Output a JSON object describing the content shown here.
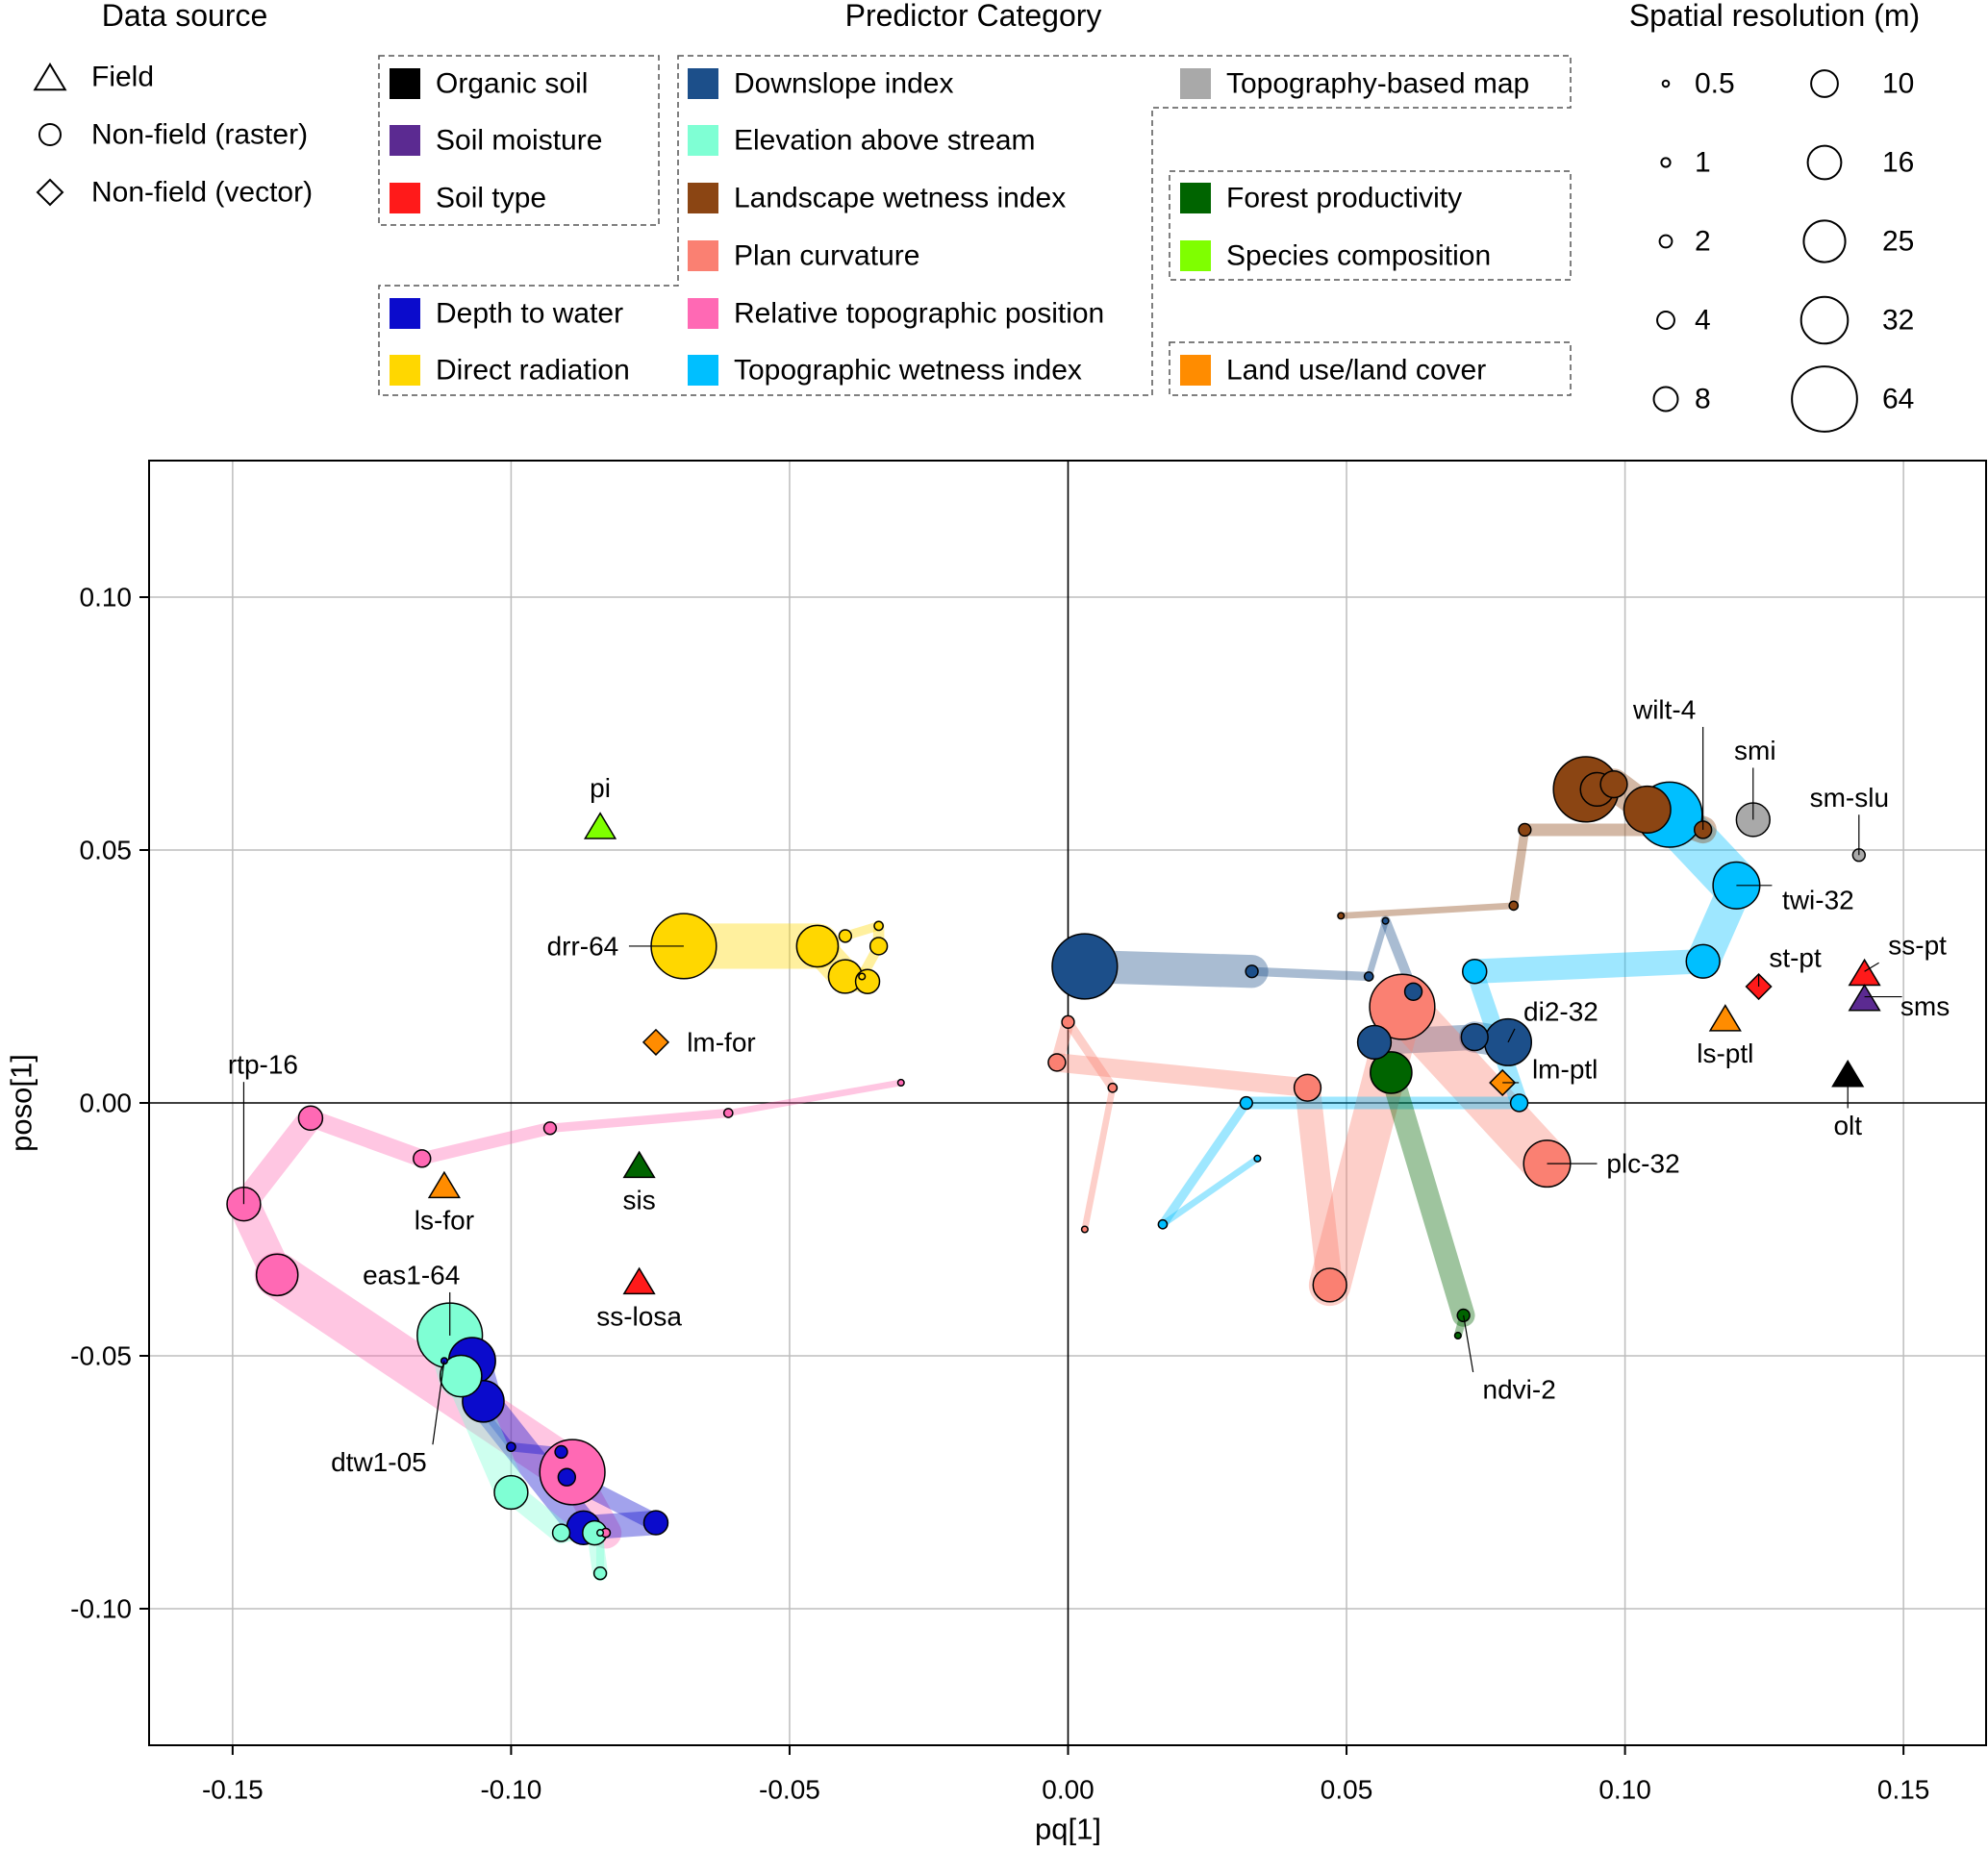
{
  "chart_data": {
    "type": "scatter",
    "title": "",
    "xlabel": "pq[1]",
    "ylabel": "poso[1]",
    "xlim": [
      -0.165,
      0.165
    ],
    "ylim": [
      -0.127,
      0.127
    ],
    "xticks": [
      "-0.15",
      "-0.10",
      "-0.05",
      "0.00",
      "0.05",
      "0.10",
      "0.15"
    ],
    "xtick_values": [
      -0.15,
      -0.1,
      -0.05,
      0.0,
      0.05,
      0.1,
      0.15
    ],
    "yticks": [
      "-0.10",
      "-0.05",
      "0.00",
      "0.05",
      "0.10"
    ],
    "ytick_values": [
      -0.1,
      -0.05,
      0.0,
      0.05,
      0.1
    ],
    "grid": true,
    "zero_lines": true,
    "legend_data_source": {
      "title": "Data source",
      "items": [
        {
          "label": "Field",
          "shape": "triangle"
        },
        {
          "label": "Non-field (raster)",
          "shape": "circle"
        },
        {
          "label": "Non-field (vector)",
          "shape": "diamond"
        }
      ]
    },
    "legend_category": {
      "title": "Predictor Category",
      "items": [
        {
          "label": "Organic soil",
          "color": "#000000"
        },
        {
          "label": "Soil moisture",
          "color": "#5b2a91"
        },
        {
          "label": "Soil type",
          "color": "#ff1a1a"
        },
        {
          "label": "Depth to water",
          "color": "#0b0bcc"
        },
        {
          "label": "Direct radiation",
          "color": "#ffd700"
        },
        {
          "label": "Downslope index",
          "color": "#1c4f8a"
        },
        {
          "label": "Elevation above stream",
          "color": "#7fffd4"
        },
        {
          "label": "Landscape wetness index",
          "color": "#8b4513"
        },
        {
          "label": "Plan curvature",
          "color": "#fa8072"
        },
        {
          "label": "Relative topographic position",
          "color": "#ff69b4"
        },
        {
          "label": "Topographic wetness index",
          "color": "#00bfff"
        },
        {
          "label": "Topography-based map",
          "color": "#a9a9a9"
        },
        {
          "label": "Forest productivity",
          "color": "#006400"
        },
        {
          "label": "Species composition",
          "color": "#7fff00"
        },
        {
          "label": "Land use/land cover",
          "color": "#ff8c00"
        }
      ]
    },
    "legend_resolution": {
      "title": "Spatial resolution (m)",
      "items": [
        "0.5",
        "1",
        "2",
        "4",
        "8",
        "10",
        "16",
        "25",
        "32",
        "64"
      ],
      "values": [
        0.5,
        1,
        2,
        4,
        8,
        10,
        16,
        25,
        32,
        64
      ]
    },
    "series": [
      {
        "category": "Relative topographic position",
        "color": "#ff69b4",
        "points": [
          {
            "x": -0.03,
            "y": 0.004,
            "res": 0.5
          },
          {
            "x": -0.061,
            "y": -0.002,
            "res": 1
          },
          {
            "x": -0.093,
            "y": -0.005,
            "res": 2
          },
          {
            "x": -0.116,
            "y": -0.011,
            "res": 4
          },
          {
            "x": -0.136,
            "y": -0.003,
            "res": 8
          },
          {
            "x": -0.148,
            "y": -0.02,
            "res": 16,
            "label": "rtp-16"
          },
          {
            "x": -0.142,
            "y": -0.034,
            "res": 25
          },
          {
            "x": -0.089,
            "y": -0.073,
            "res": 64
          },
          {
            "x": -0.083,
            "y": -0.085,
            "res": 1
          }
        ]
      },
      {
        "category": "Depth to water",
        "color": "#0b0bcc",
        "points": [
          {
            "x": -0.112,
            "y": -0.051,
            "res": 0.5,
            "label": "dtw1-05"
          },
          {
            "x": -0.1,
            "y": -0.068,
            "res": 1
          },
          {
            "x": -0.091,
            "y": -0.069,
            "res": 2
          },
          {
            "x": -0.09,
            "y": -0.074,
            "res": 4
          },
          {
            "x": -0.074,
            "y": -0.083,
            "res": 8
          },
          {
            "x": -0.087,
            "y": -0.084,
            "res": 16
          },
          {
            "x": -0.105,
            "y": -0.059,
            "res": 25
          },
          {
            "x": -0.107,
            "y": -0.051,
            "res": 32
          }
        ]
      },
      {
        "category": "Elevation above stream",
        "color": "#7fffd4",
        "points": [
          {
            "x": -0.111,
            "y": -0.046,
            "res": 64,
            "label": "eas1-64"
          },
          {
            "x": -0.109,
            "y": -0.054,
            "res": 25
          },
          {
            "x": -0.1,
            "y": -0.077,
            "res": 16
          },
          {
            "x": -0.091,
            "y": -0.085,
            "res": 4
          },
          {
            "x": -0.085,
            "y": -0.085,
            "res": 8
          },
          {
            "x": -0.084,
            "y": -0.093,
            "res": 2
          },
          {
            "x": -0.084,
            "y": -0.085,
            "res": 0.5
          }
        ]
      },
      {
        "category": "Direct radiation",
        "color": "#ffd700",
        "points": [
          {
            "x": -0.069,
            "y": 0.031,
            "res": 64,
            "label": "drr-64"
          },
          {
            "x": -0.045,
            "y": 0.031,
            "res": 25
          },
          {
            "x": -0.04,
            "y": 0.025,
            "res": 16
          },
          {
            "x": -0.036,
            "y": 0.024,
            "res": 8
          },
          {
            "x": -0.037,
            "y": 0.025,
            "res": 0.5
          },
          {
            "x": -0.034,
            "y": 0.031,
            "res": 4
          },
          {
            "x": -0.034,
            "y": 0.035,
            "res": 1
          },
          {
            "x": -0.04,
            "y": 0.033,
            "res": 2
          }
        ]
      },
      {
        "category": "Downslope index",
        "color": "#1c4f8a",
        "points": [
          {
            "x": 0.003,
            "y": 0.027,
            "res": 64
          },
          {
            "x": 0.033,
            "y": 0.026,
            "res": 2
          },
          {
            "x": 0.054,
            "y": 0.025,
            "res": 1
          },
          {
            "x": 0.057,
            "y": 0.036,
            "res": 0.5
          },
          {
            "x": 0.062,
            "y": 0.022,
            "res": 4
          },
          {
            "x": 0.055,
            "y": 0.012,
            "res": 16
          },
          {
            "x": 0.073,
            "y": 0.013,
            "res": 10
          },
          {
            "x": 0.079,
            "y": 0.012,
            "res": 32,
            "label": "di2-32"
          }
        ]
      },
      {
        "category": "Plan curvature",
        "color": "#fa8072",
        "points": [
          {
            "x": 0.003,
            "y": -0.025,
            "res": 0.5
          },
          {
            "x": 0.008,
            "y": 0.003,
            "res": 1
          },
          {
            "x": 0.0,
            "y": 0.016,
            "res": 2
          },
          {
            "x": -0.002,
            "y": 0.008,
            "res": 4
          },
          {
            "x": 0.043,
            "y": 0.003,
            "res": 10
          },
          {
            "x": 0.047,
            "y": -0.036,
            "res": 16
          },
          {
            "x": 0.06,
            "y": 0.019,
            "res": 64
          },
          {
            "x": 0.086,
            "y": -0.012,
            "res": 32,
            "label": "plc-32"
          }
        ]
      },
      {
        "category": "Topographic wetness index",
        "color": "#00bfff",
        "points": [
          {
            "x": 0.034,
            "y": -0.011,
            "res": 0.5
          },
          {
            "x": 0.017,
            "y": -0.024,
            "res": 1
          },
          {
            "x": 0.032,
            "y": 0.0,
            "res": 2
          },
          {
            "x": 0.081,
            "y": 0.0,
            "res": 4
          },
          {
            "x": 0.073,
            "y": 0.026,
            "res": 8
          },
          {
            "x": 0.114,
            "y": 0.028,
            "res": 16
          },
          {
            "x": 0.12,
            "y": 0.043,
            "res": 32,
            "label": "twi-32"
          },
          {
            "x": 0.108,
            "y": 0.057,
            "res": 64
          }
        ]
      },
      {
        "category": "Landscape wetness index",
        "color": "#8b4513",
        "points": [
          {
            "x": 0.049,
            "y": 0.037,
            "res": 0.5
          },
          {
            "x": 0.08,
            "y": 0.039,
            "res": 1
          },
          {
            "x": 0.082,
            "y": 0.054,
            "res": 2
          },
          {
            "x": 0.114,
            "y": 0.054,
            "res": 4,
            "label": "wilt-4"
          },
          {
            "x": 0.104,
            "y": 0.058,
            "res": 32
          },
          {
            "x": 0.098,
            "y": 0.063,
            "res": 10
          },
          {
            "x": 0.095,
            "y": 0.062,
            "res": 16
          },
          {
            "x": 0.093,
            "y": 0.062,
            "res": 64
          }
        ]
      },
      {
        "category": "Forest productivity",
        "color": "#006400",
        "points": [
          {
            "x": 0.058,
            "y": 0.006,
            "res": 25
          },
          {
            "x": 0.071,
            "y": -0.042,
            "res": 2,
            "label": "ndvi-2"
          },
          {
            "x": 0.07,
            "y": -0.046,
            "res": 0.5
          }
        ]
      }
    ],
    "standalone_points": [
      {
        "x": -0.084,
        "y": 0.055,
        "shape": "triangle",
        "category": "Species composition",
        "color": "#7fff00",
        "label": "pi"
      },
      {
        "x": -0.074,
        "y": 0.012,
        "shape": "diamond",
        "category": "Land use/land cover",
        "color": "#ff8c00",
        "label": "lm-for"
      },
      {
        "x": -0.112,
        "y": -0.016,
        "shape": "triangle",
        "category": "Land use/land cover",
        "color": "#ff8c00",
        "label": "ls-for"
      },
      {
        "x": -0.077,
        "y": -0.012,
        "shape": "triangle",
        "category": "Forest productivity",
        "color": "#006400",
        "label": "sis"
      },
      {
        "x": -0.077,
        "y": -0.035,
        "shape": "triangle",
        "category": "Soil type",
        "color": "#ff1a1a",
        "label": "ss-losa"
      },
      {
        "x": 0.078,
        "y": 0.004,
        "shape": "diamond",
        "category": "Land use/land cover",
        "color": "#ff8c00",
        "label": "lm-ptl"
      },
      {
        "x": 0.118,
        "y": 0.017,
        "shape": "triangle",
        "category": "Land use/land cover",
        "color": "#ff8c00",
        "label": "ls-ptl"
      },
      {
        "x": 0.124,
        "y": 0.023,
        "shape": "diamond",
        "category": "Soil type",
        "color": "#ff1a1a",
        "label": "st-pt"
      },
      {
        "x": 0.143,
        "y": 0.026,
        "shape": "triangle",
        "category": "Soil type",
        "color": "#ff1a1a",
        "label": "ss-pt"
      },
      {
        "x": 0.143,
        "y": 0.021,
        "shape": "triangle",
        "category": "Soil moisture",
        "color": "#5b2a91",
        "label": "sms"
      },
      {
        "x": 0.14,
        "y": 0.006,
        "shape": "triangle",
        "category": "Organic soil",
        "color": "#000000",
        "label": "olt"
      },
      {
        "x": 0.123,
        "y": 0.056,
        "shape": "circle",
        "res": 16,
        "category": "Topography-based map",
        "color": "#a9a9a9",
        "label": "smi"
      },
      {
        "x": 0.142,
        "y": 0.049,
        "shape": "circle",
        "res": 2,
        "category": "Topography-based map",
        "color": "#a9a9a9",
        "label": "sm-slu"
      }
    ]
  }
}
